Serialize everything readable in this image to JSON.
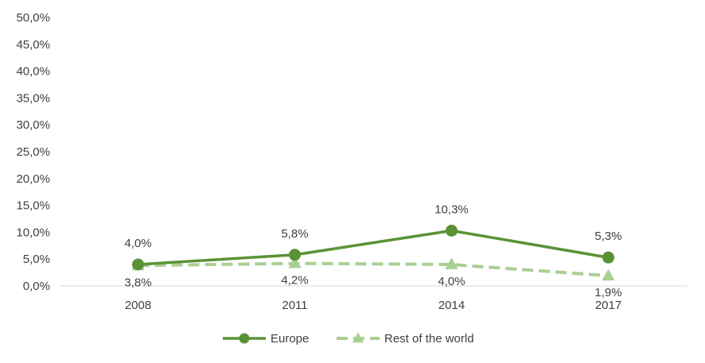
{
  "chart_data": {
    "type": "line",
    "categories": [
      "2008",
      "2011",
      "2014",
      "2017"
    ],
    "ylim": [
      0,
      50
    ],
    "yticks": [
      0,
      5,
      10,
      15,
      20,
      25,
      30,
      35,
      40,
      45,
      50
    ],
    "ytick_labels": [
      "0,0%",
      "5,0%",
      "10,0%",
      "15,0%",
      "20,0%",
      "25,0%",
      "30,0%",
      "35,0%",
      "40,0%",
      "45,0%",
      "50,0%"
    ],
    "grid": false,
    "legend_position": "bottom",
    "series": [
      {
        "name": "Europe",
        "values": [
          4.0,
          5.8,
          10.3,
          5.3
        ],
        "labels": [
          "4,0%",
          "5,8%",
          "10,3%",
          "5,3%"
        ],
        "color": "#5b9237",
        "marker": "circle",
        "dash": "solid"
      },
      {
        "name": "Rest of the world",
        "values": [
          3.8,
          4.2,
          4.0,
          1.9
        ],
        "labels": [
          "3,8%",
          "4,2%",
          "4,0%",
          "1,9%"
        ],
        "color": "#a9cf93",
        "marker": "triangle",
        "dash": "dashed"
      }
    ]
  }
}
